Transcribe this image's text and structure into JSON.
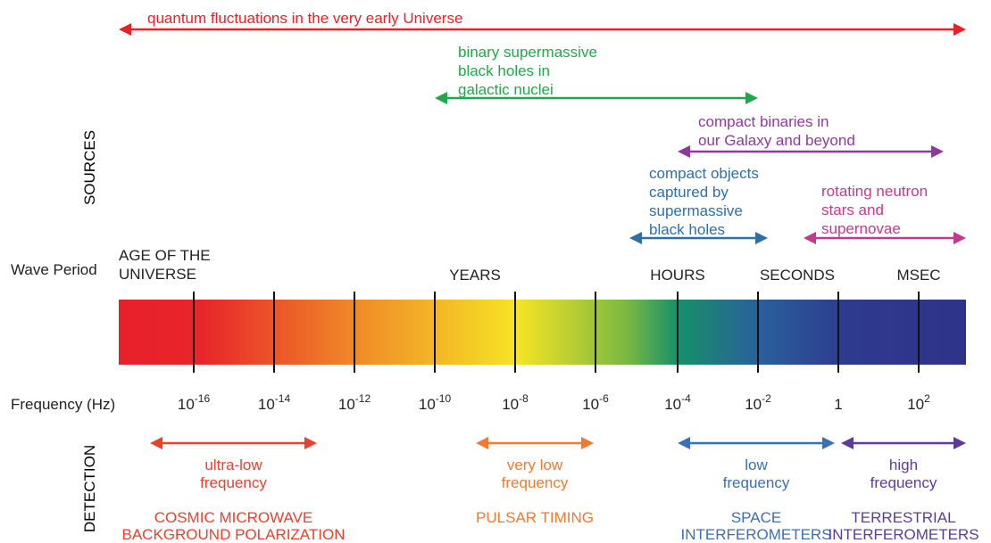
{
  "sources_label": "SOURCES",
  "detection_label": "DETECTION",
  "wave_period": {
    "label": "Wave Period",
    "marks": [
      {
        "lines": [
          "AGE OF THE",
          "UNIVERSE"
        ]
      },
      {
        "lines": [
          "YEARS"
        ]
      },
      {
        "lines": [
          "HOURS"
        ]
      },
      {
        "lines": [
          "SECONDS"
        ]
      },
      {
        "lines": [
          "MSEC"
        ]
      }
    ]
  },
  "frequency": {
    "label": "Frequency (Hz)",
    "ticks": [
      {
        "base": "10",
        "exponent": "-16"
      },
      {
        "base": "10",
        "exponent": "-14"
      },
      {
        "base": "10",
        "exponent": "-12"
      },
      {
        "base": "10",
        "exponent": "-10"
      },
      {
        "base": "10",
        "exponent": "-8"
      },
      {
        "base": "10",
        "exponent": "-6"
      },
      {
        "base": "10",
        "exponent": "-4"
      },
      {
        "base": "10",
        "exponent": "-2"
      },
      {
        "base": "1"
      },
      {
        "base": "10",
        "exponent": "2"
      }
    ]
  },
  "sources": [
    {
      "lines": [
        "quantum fluctuations in the very early Universe"
      ]
    },
    {
      "lines": [
        "binary supermassive",
        "black holes in",
        "galactic nuclei"
      ]
    },
    {
      "lines": [
        "compact binaries in",
        "our Galaxy and beyond"
      ]
    },
    {
      "lines": [
        "compact objects",
        "captured by",
        "supermassive",
        "black holes"
      ]
    },
    {
      "lines": [
        "rotating neutron",
        "stars and",
        "supernovae"
      ]
    }
  ],
  "detection": [
    {
      "lines": [
        "ultra-low",
        "frequency"
      ],
      "method": [
        "COSMIC MICROWAVE",
        "BACKGROUND POLARIZATION"
      ]
    },
    {
      "lines": [
        "very low",
        "frequency"
      ],
      "method": [
        "PULSAR TIMING"
      ]
    },
    {
      "lines": [
        "low",
        "frequency"
      ],
      "method": [
        "SPACE",
        "INTERFEROMETERS"
      ]
    },
    {
      "lines": [
        "high",
        "frequency"
      ],
      "method": [
        "TERRESTRIAL",
        "INTERFEROMETERS"
      ]
    }
  ]
}
